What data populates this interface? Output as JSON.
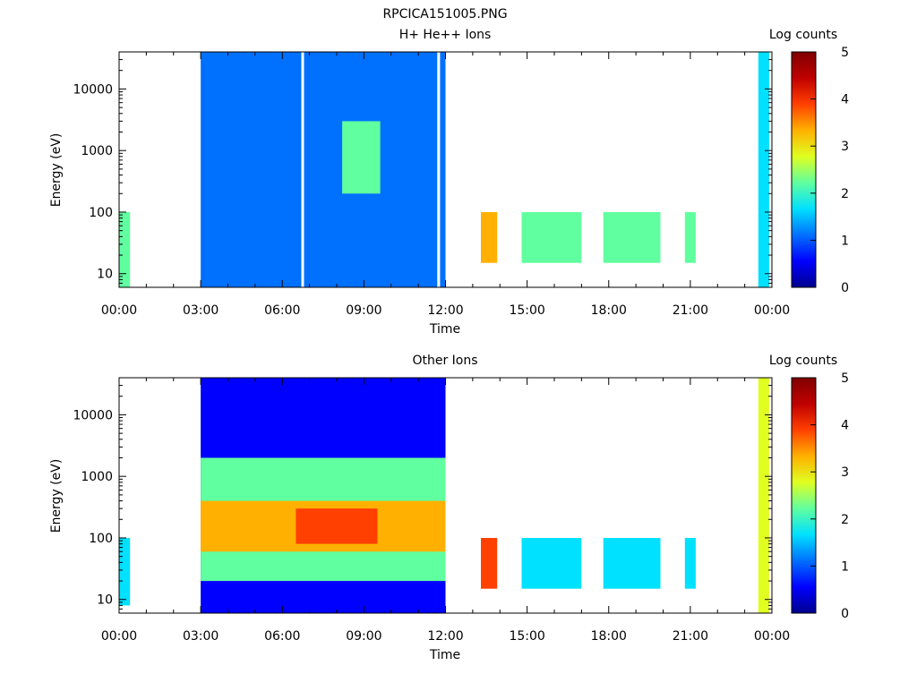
{
  "page_title": "RPCICA151005.PNG",
  "chart_data": [
    {
      "type": "heatmap",
      "title": "H+ He++ Ions",
      "xlabel": "Time",
      "ylabel": "Energy (eV)",
      "x_ticks": [
        "00:00",
        "03:00",
        "06:00",
        "09:00",
        "12:00",
        "15:00",
        "18:00",
        "21:00",
        "00:00"
      ],
      "x_range_hours": [
        0,
        24
      ],
      "y_scale": "log",
      "y_range": [
        6,
        40000
      ],
      "y_ticks": [
        10,
        100,
        1000,
        10000
      ],
      "y_tick_labels": [
        "10",
        "100",
        "1000",
        "10000"
      ],
      "colorbar": {
        "label": "Log counts",
        "range": [
          0,
          5
        ],
        "ticks": [
          "0",
          "1",
          "2",
          "3",
          "4",
          "5"
        ]
      },
      "colormap": [
        "#00008f",
        "#0000ff",
        "#0070ff",
        "#00e0ff",
        "#60ff9f",
        "#e0ff20",
        "#ffb000",
        "#ff4000",
        "#c00000",
        "#800000"
      ],
      "regions": [
        {
          "t": [
            0.0,
            0.4
          ],
          "e": [
            6,
            100
          ],
          "level": 2.1,
          "note": "short burst"
        },
        {
          "t": [
            3.0,
            6.7
          ],
          "e": [
            6,
            40000
          ],
          "level": 1.0
        },
        {
          "t": [
            6.8,
            11.7
          ],
          "e": [
            6,
            40000
          ],
          "level": 1.2
        },
        {
          "t": [
            8.2,
            9.6
          ],
          "e": [
            200,
            3000
          ],
          "level": 2.0
        },
        {
          "t": [
            11.8,
            12.0
          ],
          "e": [
            6,
            40000
          ],
          "level": 0.9
        },
        {
          "t": [
            13.3,
            13.9
          ],
          "e": [
            15,
            100
          ],
          "level": 3.6
        },
        {
          "t": [
            14.8,
            17.0
          ],
          "e": [
            15,
            100
          ],
          "level": 2.2
        },
        {
          "t": [
            17.8,
            19.9
          ],
          "e": [
            15,
            100
          ],
          "level": 2.3
        },
        {
          "t": [
            20.8,
            21.2
          ],
          "e": [
            15,
            100
          ],
          "level": 2.0
        },
        {
          "t": [
            23.5,
            23.9
          ],
          "e": [
            6,
            40000
          ],
          "level": 1.4
        }
      ]
    },
    {
      "type": "heatmap",
      "title": "Other Ions",
      "xlabel": "Time",
      "ylabel": "Energy (eV)",
      "x_ticks": [
        "00:00",
        "03:00",
        "06:00",
        "09:00",
        "12:00",
        "15:00",
        "18:00",
        "21:00",
        "00:00"
      ],
      "x_range_hours": [
        0,
        24
      ],
      "y_scale": "log",
      "y_range": [
        6,
        40000
      ],
      "y_ticks": [
        10,
        100,
        1000,
        10000
      ],
      "y_tick_labels": [
        "10",
        "100",
        "1000",
        "10000"
      ],
      "colorbar": {
        "label": "Log counts",
        "range": [
          0,
          5
        ],
        "ticks": [
          "0",
          "1",
          "2",
          "3",
          "4",
          "5"
        ]
      },
      "colormap": [
        "#00008f",
        "#0000ff",
        "#0070ff",
        "#00e0ff",
        "#60ff9f",
        "#e0ff20",
        "#ffb000",
        "#ff4000",
        "#c00000",
        "#800000"
      ],
      "regions": [
        {
          "t": [
            0.0,
            0.4
          ],
          "e": [
            8,
            100
          ],
          "level": 1.8
        },
        {
          "t": [
            3.0,
            12.0
          ],
          "e": [
            6,
            40000
          ],
          "level": 0.5
        },
        {
          "t": [
            3.0,
            12.0
          ],
          "e": [
            20,
            2000
          ],
          "level": 2.4
        },
        {
          "t": [
            3.0,
            12.0
          ],
          "e": [
            60,
            400
          ],
          "level": 3.2
        },
        {
          "t": [
            6.5,
            9.5
          ],
          "e": [
            80,
            300
          ],
          "level": 3.8
        },
        {
          "t": [
            13.3,
            13.9
          ],
          "e": [
            15,
            100
          ],
          "level": 4.0
        },
        {
          "t": [
            14.8,
            17.0
          ],
          "e": [
            15,
            100
          ],
          "level": 1.8
        },
        {
          "t": [
            17.8,
            19.9
          ],
          "e": [
            15,
            100
          ],
          "level": 1.8
        },
        {
          "t": [
            20.8,
            21.2
          ],
          "e": [
            15,
            100
          ],
          "level": 1.7
        },
        {
          "t": [
            23.5,
            23.9
          ],
          "e": [
            6,
            40000
          ],
          "level": 2.5
        }
      ]
    }
  ]
}
